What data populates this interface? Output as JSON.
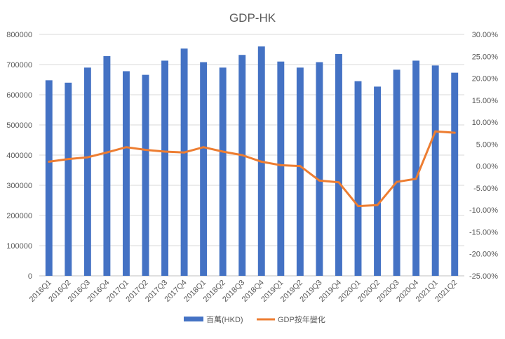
{
  "chart_data": {
    "type": "bar",
    "title": "GDP-HK",
    "categories": [
      "2016Q1",
      "2016Q2",
      "2016Q3",
      "2016Q4",
      "2017Q1",
      "2017Q2",
      "2017Q3",
      "2017Q4",
      "2018Q1",
      "2018Q2",
      "2018Q3",
      "2018Q4",
      "2019Q1",
      "2019Q2",
      "2019Q3",
      "2019Q4",
      "2020Q1",
      "2020Q2",
      "2020Q3",
      "2020Q4",
      "2021Q1",
      "2021Q2"
    ],
    "series": [
      {
        "name": "百萬(HKD)",
        "type": "bar",
        "axis": "left",
        "color": "#4472C4",
        "values": [
          648000,
          640000,
          690000,
          728000,
          678000,
          666000,
          713000,
          753000,
          708000,
          690000,
          732000,
          760000,
          710000,
          690000,
          708000,
          735000,
          645000,
          627000,
          683000,
          713000,
          697000,
          673000
        ]
      },
      {
        "name": "GDP按年變化",
        "type": "line",
        "axis": "right",
        "color": "#ED7D31",
        "values": [
          0.01,
          0.016,
          0.02,
          0.031,
          0.043,
          0.037,
          0.033,
          0.031,
          0.043,
          0.033,
          0.025,
          0.01,
          0.002,
          0.0,
          -0.033,
          -0.037,
          -0.091,
          -0.089,
          -0.036,
          -0.029,
          0.079,
          0.076
        ]
      }
    ],
    "y_left": {
      "min": 0,
      "max": 800000,
      "ticks": [
        "0",
        "100000",
        "200000",
        "300000",
        "400000",
        "500000",
        "600000",
        "700000",
        "800000"
      ]
    },
    "y_right": {
      "min": -0.25,
      "max": 0.3,
      "ticks": [
        "-25.00%",
        "-20.00%",
        "-15.00%",
        "-10.00%",
        "-5.00%",
        "0.00%",
        "5.00%",
        "10.00%",
        "15.00%",
        "20.00%",
        "25.00%",
        "30.00%"
      ]
    },
    "grid": true,
    "legend_position": "bottom"
  }
}
